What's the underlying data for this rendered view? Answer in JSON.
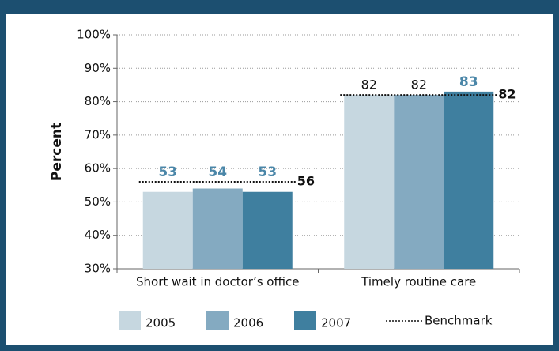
{
  "chart_data": {
    "type": "bar",
    "y_label": "Percent",
    "categories": [
      "Short wait in doctor’s office",
      "Timely routine care"
    ],
    "series": [
      {
        "name": "2005",
        "color": "#c6d7e0",
        "values": [
          53,
          82
        ]
      },
      {
        "name": "2006",
        "color": "#84aac1",
        "values": [
          54,
          82
        ]
      },
      {
        "name": "2007",
        "color": "#3f7f9f",
        "values": [
          53,
          83
        ]
      }
    ],
    "benchmark": {
      "name": "Benchmark",
      "values": [
        56,
        82
      ]
    },
    "label_color": "#4a86a8",
    "ylim": [
      30,
      100
    ],
    "yticks": [
      {
        "value": 30,
        "label": "30%"
      },
      {
        "value": 40,
        "label": "40%"
      },
      {
        "value": 50,
        "label": "50%"
      },
      {
        "value": 60,
        "label": "60%"
      },
      {
        "value": 70,
        "label": "70%"
      },
      {
        "value": 80,
        "label": "80%"
      },
      {
        "value": 90,
        "label": "90%"
      },
      {
        "value": 100,
        "label": "100%"
      }
    ],
    "grid": true
  }
}
